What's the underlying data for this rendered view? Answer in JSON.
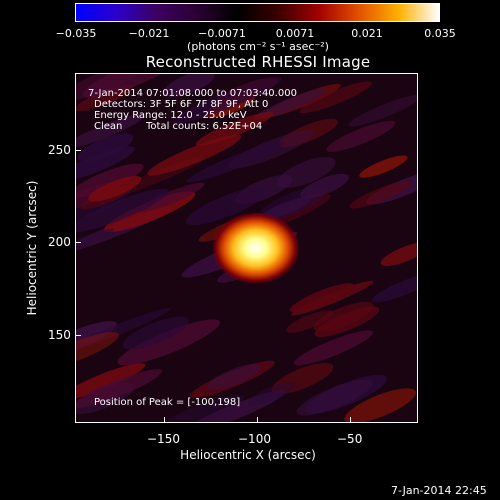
{
  "colorbar": {
    "tick_labels": [
      "−0.035",
      "−0.021",
      "−0.0071",
      "0.0071",
      "0.021",
      "0.035"
    ],
    "unit_label": "(photons cm⁻² s⁻¹ asec⁻²)",
    "colormap": [
      "#0000ff",
      "#2a00cc",
      "#3c0060",
      "#2a0034",
      "#000000",
      "#3a0000",
      "#a00000",
      "#e25000",
      "#ffb000",
      "#ffffff"
    ]
  },
  "image": {
    "title": "Reconstructed RHESSI Image",
    "time_range": "7-Jan-2014 07:01:08.000 to 07:03:40.000",
    "detectors": "Detectors: 3F 5F 6F 7F 8F 9F, Att 0",
    "energy_range": "Energy Range: 12.0 - 25.0 keV",
    "clean_label": "Clean",
    "total_counts": "Total counts: 6.52E+04",
    "peak_position": "Position of Peak = [-100,198]",
    "peak_x": -100,
    "peak_y": 198
  },
  "axes": {
    "xlabel": "Heliocentric X (arcsec)",
    "ylabel": "Heliocentric Y (arcsec)",
    "x_ticks": [
      "−150",
      "−100",
      "−50"
    ],
    "y_ticks": [
      "250",
      "200",
      "150"
    ],
    "xlim": [
      -197,
      -12
    ],
    "ylim": [
      103,
      292
    ]
  },
  "footer": {
    "timestamp": "7-Jan-2014 22:45"
  }
}
